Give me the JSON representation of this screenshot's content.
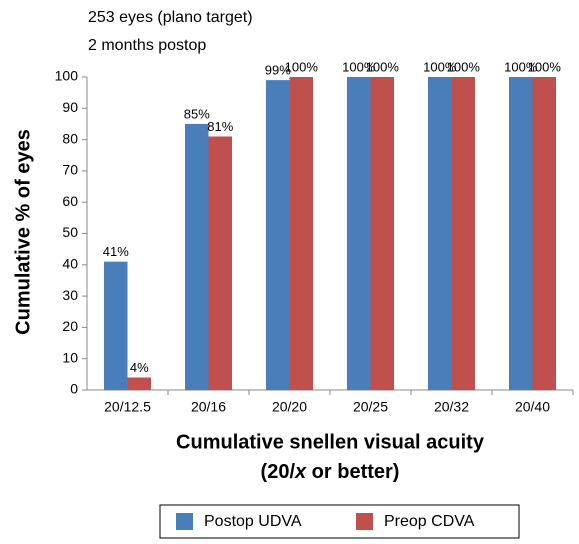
{
  "chart_data": {
    "type": "bar",
    "title": [
      "253 eyes (plano target)",
      "2 months postop"
    ],
    "y_label": "Cumulative % of eyes",
    "x_label": {
      "line1": "Cumulative snellen visual acuity",
      "line2": [
        "(20/",
        "x",
        " or better)"
      ]
    },
    "categories": [
      "20/12.5",
      "20/16",
      "20/20",
      "20/25",
      "20/32",
      "20/40"
    ],
    "series": [
      {
        "name": "Postop UDVA",
        "color": "#4a7ebb",
        "values": [
          41,
          85,
          99,
          100,
          100,
          100
        ],
        "value_labels": [
          "41%",
          "85%",
          "99%",
          "100%",
          "100%",
          "100%"
        ]
      },
      {
        "name": "Preop CDVA",
        "color": "#c0504d",
        "values": [
          4,
          81,
          100,
          100,
          100,
          100
        ],
        "value_labels": [
          "4%",
          "81%",
          "100%",
          "100%",
          "100%",
          "100%"
        ]
      }
    ],
    "ylim": [
      0,
      100
    ],
    "yticks": [
      0,
      10,
      20,
      30,
      40,
      50,
      60,
      70,
      80,
      90,
      100
    ],
    "grid": false,
    "legend": "bottom"
  }
}
